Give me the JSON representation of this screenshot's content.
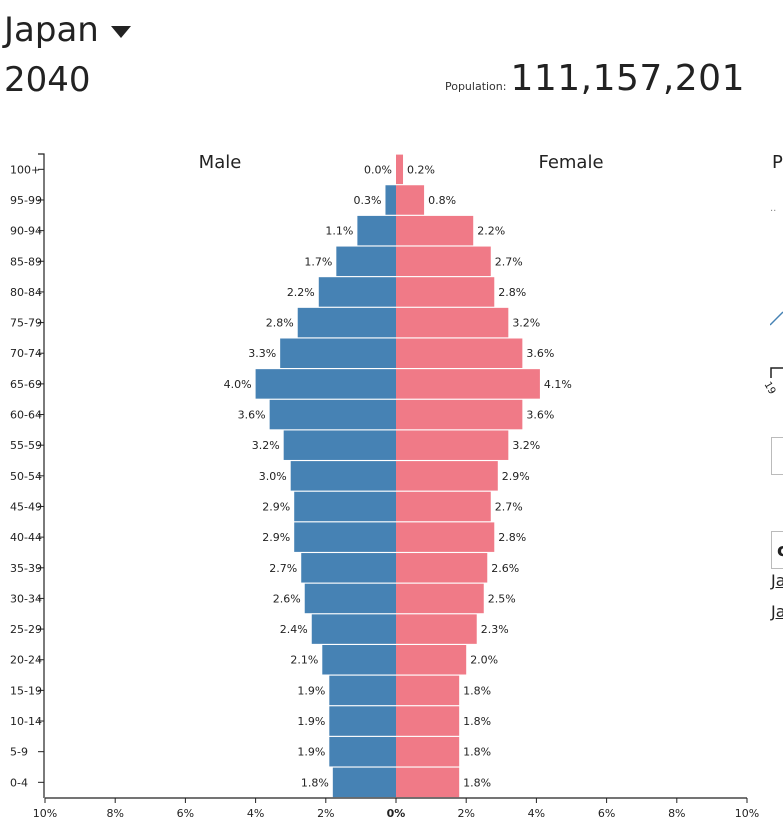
{
  "header": {
    "country": "Japan",
    "year": "2040",
    "population_label": "Population:",
    "population_value": "111,157,201"
  },
  "chart_data": {
    "type": "bar",
    "orientation": "horizontal",
    "categories": [
      "100+",
      "95-99",
      "90-94",
      "85-89",
      "80-84",
      "75-79",
      "70-74",
      "65-69",
      "60-64",
      "55-59",
      "50-54",
      "45-49",
      "40-44",
      "35-39",
      "30-34",
      "25-29",
      "20-24",
      "15-19",
      "10-14",
      "5-9",
      "0-4"
    ],
    "series": [
      {
        "name": "Male",
        "color": "#4682b4",
        "values": [
          0.0,
          0.3,
          1.1,
          1.7,
          2.2,
          2.8,
          3.3,
          4.0,
          3.6,
          3.2,
          3.0,
          2.9,
          2.9,
          2.7,
          2.6,
          2.4,
          2.1,
          1.9,
          1.9,
          1.9,
          1.8
        ]
      },
      {
        "name": "Female",
        "color": "#f07a87",
        "values": [
          0.2,
          0.8,
          2.2,
          2.7,
          2.8,
          3.2,
          3.6,
          4.1,
          3.6,
          3.2,
          2.9,
          2.7,
          2.8,
          2.6,
          2.5,
          2.3,
          2.0,
          1.8,
          1.8,
          1.8,
          1.8
        ]
      }
    ],
    "value_labels": {
      "male": [
        "0.0%",
        "0.3%",
        "1.1%",
        "1.7%",
        "2.2%",
        "2.8%",
        "3.3%",
        "4.0%",
        "3.6%",
        "3.2%",
        "3.0%",
        "2.9%",
        "2.9%",
        "2.7%",
        "2.6%",
        "2.4%",
        "2.1%",
        "1.9%",
        "1.9%",
        "1.9%",
        "1.8%"
      ],
      "female": [
        "0.2%",
        "0.8%",
        "2.2%",
        "2.7%",
        "2.8%",
        "3.2%",
        "3.6%",
        "4.1%",
        "3.6%",
        "3.2%",
        "2.9%",
        "2.7%",
        "2.8%",
        "2.6%",
        "2.5%",
        "2.3%",
        "2.0%",
        "1.8%",
        "1.8%",
        "1.8%",
        "1.8%"
      ]
    },
    "xaxis_ticks": [
      "10%",
      "8%",
      "6%",
      "4%",
      "2%",
      "0%",
      "2%",
      "4%",
      "6%",
      "8%",
      "10%"
    ],
    "xlim": [
      -10,
      10
    ],
    "grid": false,
    "legend": "top, above each side"
  },
  "sidebar": {
    "title_fragment": "P",
    "link_fragment_1": "Ja",
    "link_fragment_2": "Ja",
    "axis_fragment": "19"
  }
}
